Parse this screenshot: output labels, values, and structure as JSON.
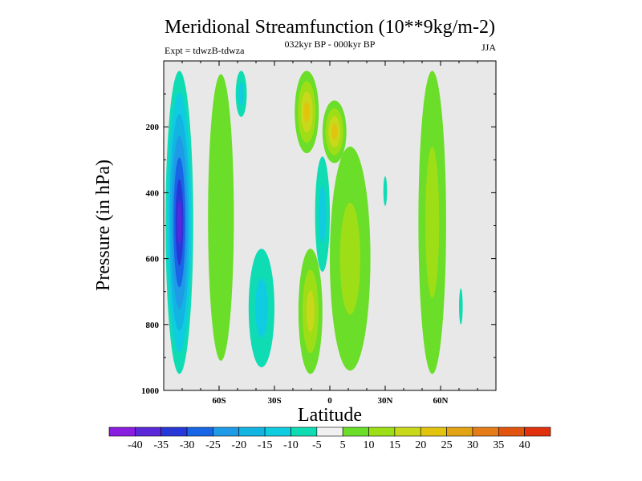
{
  "chart_data": {
    "type": "contour",
    "title": "Meridional Streamfunction (10**9kg/m-2)",
    "subtitle_left": "Expt = tdwzB-tdwza",
    "subtitle_center": "032kyr BP - 000kyr BP",
    "subtitle_right": "JJA",
    "xlabel": "Latitude",
    "ylabel": "Pressure (in hPa)",
    "xlim": [
      -90,
      90
    ],
    "ylim": [
      1000,
      0
    ],
    "x_ticks": [
      {
        "value": -60,
        "label": "60S"
      },
      {
        "value": -30,
        "label": "30S"
      },
      {
        "value": 0,
        "label": "0"
      },
      {
        "value": 30,
        "label": "30N"
      },
      {
        "value": 60,
        "label": "60N"
      }
    ],
    "y_ticks": [
      {
        "value": 200,
        "label": "200"
      },
      {
        "value": 400,
        "label": "400"
      },
      {
        "value": 600,
        "label": "600"
      },
      {
        "value": 800,
        "label": "800"
      },
      {
        "value": 1000,
        "label": "1000"
      }
    ],
    "background_color": "#e8e8e8",
    "colorbar": {
      "labels": [
        "-40",
        "-35",
        "-30",
        "-25",
        "-20",
        "-15",
        "-10",
        "-5",
        "5",
        "10",
        "15",
        "20",
        "25",
        "30",
        "35",
        "40"
      ],
      "colors": [
        "#8a1ee0",
        "#5a28d8",
        "#2838d8",
        "#1866e6",
        "#1e9ae6",
        "#12b4e2",
        "#10cce0",
        "#10dcb4",
        "#f0f0f0",
        "#6ade28",
        "#9ede16",
        "#c8d81a",
        "#e2c40e",
        "#e2a414",
        "#e47c18",
        "#e05410",
        "#e0300c"
      ]
    },
    "features": [
      {
        "name": "sh-negative-cell",
        "sign": "negative",
        "peak": -35,
        "lat_range": [
          -89,
          -74
        ],
        "p_range": [
          30,
          950
        ]
      },
      {
        "name": "sh-positive-band-60s",
        "sign": "positive",
        "peak": 5,
        "lat_range": [
          -66,
          -52
        ],
        "p_range": [
          40,
          910
        ]
      },
      {
        "name": "negative-cell-upper-50s",
        "sign": "negative",
        "peak": -10,
        "lat_range": [
          -51,
          -45
        ],
        "p_range": [
          30,
          170
        ]
      },
      {
        "name": "negative-cell-lower-30s",
        "sign": "negative",
        "peak": -10,
        "lat_range": [
          -44,
          -30
        ],
        "p_range": [
          570,
          930
        ]
      },
      {
        "name": "upper-positive-cell-10s",
        "sign": "positive",
        "peak": 20,
        "lat_range": [
          -19,
          -6
        ],
        "p_range": [
          30,
          280
        ]
      },
      {
        "name": "upper-positive-cell-5n",
        "sign": "positive",
        "peak": 20,
        "lat_range": [
          -4,
          9
        ],
        "p_range": [
          120,
          310
        ]
      },
      {
        "name": "tropical-negative-cell",
        "sign": "negative",
        "peak": -10,
        "lat_range": [
          -8,
          0
        ],
        "p_range": [
          290,
          640
        ]
      },
      {
        "name": "lower-positive-cell-10s",
        "sign": "positive",
        "peak": 15,
        "lat_range": [
          -17,
          -4
        ],
        "p_range": [
          570,
          950
        ]
      },
      {
        "name": "nh-positive-band-10n",
        "sign": "positive",
        "peak": 10,
        "lat_range": [
          0,
          22
        ],
        "p_range": [
          260,
          940
        ]
      },
      {
        "name": "nh-negative-sliver-30n",
        "sign": "negative",
        "peak": -5,
        "lat_range": [
          29,
          31
        ],
        "p_range": [
          350,
          440
        ]
      },
      {
        "name": "nh-positive-cell-60n",
        "sign": "positive",
        "peak": 10,
        "lat_range": [
          48,
          63
        ],
        "p_range": [
          30,
          950
        ]
      },
      {
        "name": "nh-negative-sliver-70n",
        "sign": "negative",
        "peak": -5,
        "lat_range": [
          70,
          72
        ],
        "p_range": [
          690,
          800
        ]
      }
    ]
  }
}
